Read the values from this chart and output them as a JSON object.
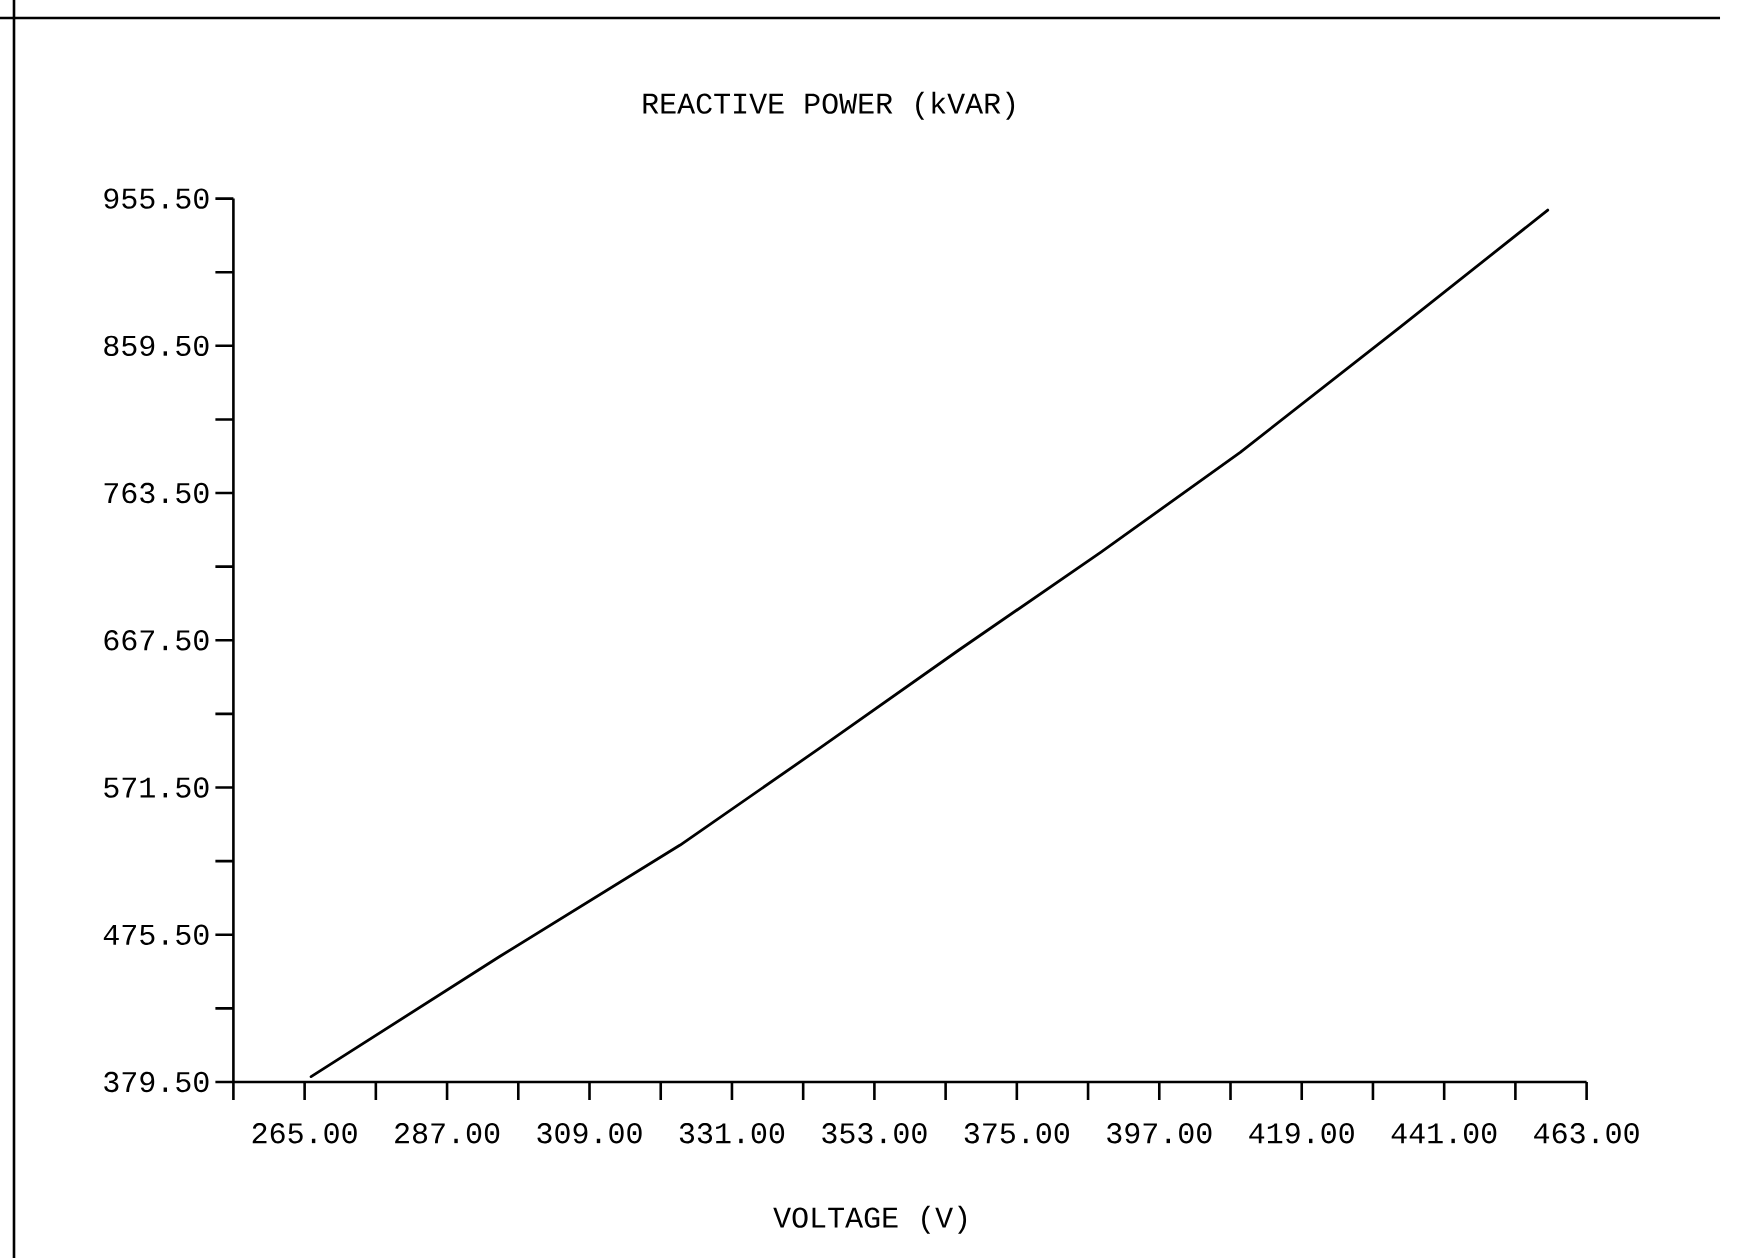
{
  "chart_data": {
    "type": "line",
    "ylabel": "REACTIVE POWER (kVAR)",
    "xlabel": "VOLTAGE (V)",
    "x": [
      266,
      295,
      323,
      344.5,
      366,
      388,
      409.5,
      434,
      457
    ],
    "series": [
      {
        "color": "#000000",
        "values": [
          383,
          461,
          534,
          597,
          661,
          725,
          790,
          871,
          948
        ]
      }
    ],
    "xlim": [
      254,
      463
    ],
    "ylim": [
      379.5,
      955.5
    ],
    "xticks": [
      {
        "value": 254,
        "label": null
      },
      {
        "value": 265,
        "label": "265.00"
      },
      {
        "value": 276,
        "label": null
      },
      {
        "value": 287,
        "label": "287.00"
      },
      {
        "value": 298,
        "label": null
      },
      {
        "value": 309,
        "label": "309.00"
      },
      {
        "value": 320,
        "label": null
      },
      {
        "value": 331,
        "label": "331.00"
      },
      {
        "value": 342,
        "label": null
      },
      {
        "value": 353,
        "label": "353.00"
      },
      {
        "value": 364,
        "label": null
      },
      {
        "value": 375,
        "label": "375.00"
      },
      {
        "value": 386,
        "label": null
      },
      {
        "value": 397,
        "label": "397.00"
      },
      {
        "value": 408,
        "label": null
      },
      {
        "value": 419,
        "label": "419.00"
      },
      {
        "value": 430,
        "label": null
      },
      {
        "value": 441,
        "label": "441.00"
      },
      {
        "value": 452,
        "label": null
      },
      {
        "value": 463,
        "label": "463.00"
      }
    ],
    "yticks": [
      {
        "value": 379.5,
        "label": "379.50"
      },
      {
        "value": 427.5,
        "label": null
      },
      {
        "value": 475.5,
        "label": "475.50"
      },
      {
        "value": 523.5,
        "label": null
      },
      {
        "value": 571.5,
        "label": "571.50"
      },
      {
        "value": 619.5,
        "label": null
      },
      {
        "value": 667.5,
        "label": "667.50"
      },
      {
        "value": 715.5,
        "label": null
      },
      {
        "value": 763.5,
        "label": "763.50"
      },
      {
        "value": 811.5,
        "label": null
      },
      {
        "value": 859.5,
        "label": "859.50"
      },
      {
        "value": 907.5,
        "label": null
      },
      {
        "value": 955.5,
        "label": "955.50"
      }
    ],
    "line_style": "solid"
  }
}
